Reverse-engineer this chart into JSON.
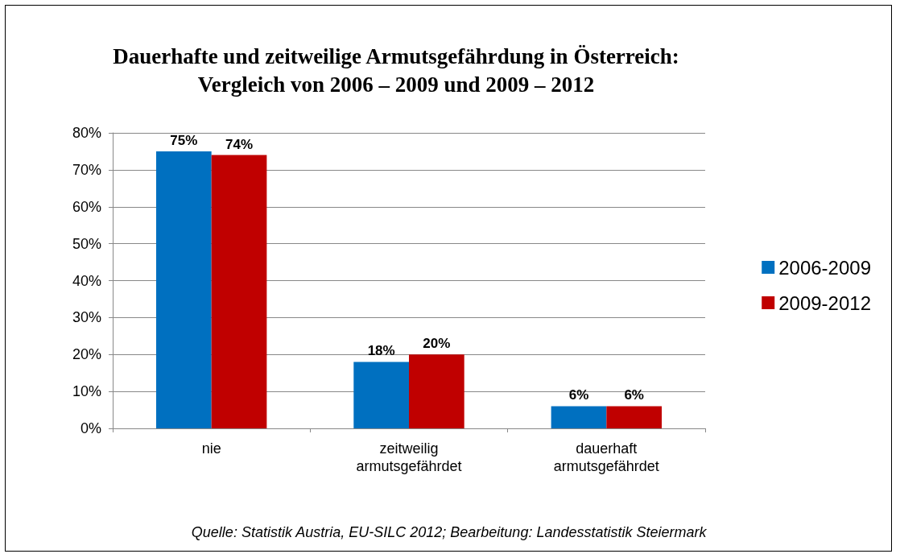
{
  "chart_data": {
    "type": "bar",
    "title": "Dauerhafte und zeitweilige Armutsgefährdung in Österreich:\nVergleich von 2006 – 2009 und 2009 – 2012",
    "categories": [
      "nie",
      "zeitweilig\narmutsgefährdet",
      "dauerhaft\narmutsgefährdet"
    ],
    "series": [
      {
        "name": "2006-2009",
        "color": "#0070c0",
        "values": [
          75,
          18,
          6
        ],
        "value_labels": [
          "75%",
          "18%",
          "6%"
        ]
      },
      {
        "name": "2009-2012",
        "color": "#c00000",
        "values": [
          74,
          20,
          6
        ],
        "value_labels": [
          "74%",
          "20%",
          "6%"
        ]
      }
    ],
    "ylim": [
      0,
      80
    ],
    "yticks": [
      {
        "value": 0,
        "label": "0%"
      },
      {
        "value": 10,
        "label": "10%"
      },
      {
        "value": 20,
        "label": "20%"
      },
      {
        "value": 30,
        "label": "30%"
      },
      {
        "value": 40,
        "label": "40%"
      },
      {
        "value": 50,
        "label": "50%"
      },
      {
        "value": 60,
        "label": "60%"
      },
      {
        "value": 70,
        "label": "70%"
      },
      {
        "value": 80,
        "label": "80%"
      }
    ],
    "grid": "y",
    "legend": "right",
    "annotations": [
      "Quelle: Statistik Austria, EU-SILC 2012; Bearbeitung: Landesstatistik Steiermark"
    ]
  }
}
